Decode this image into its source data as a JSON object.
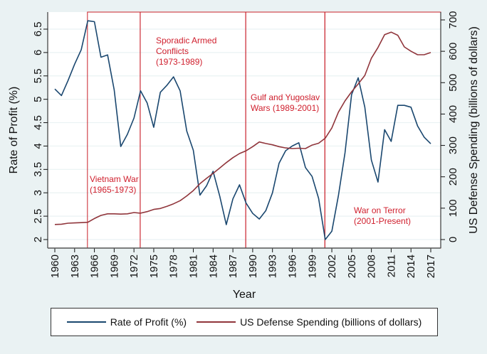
{
  "chart_data": {
    "type": "line",
    "title": "",
    "xlabel": "Year",
    "ylabel_left": "Rate of Profit (%)",
    "ylabel_right": "US Defense Spending (billions of dollars)",
    "ylim_left": [
      2,
      6.5
    ],
    "ylim_right": [
      0,
      700
    ],
    "xlim": [
      1960,
      2017
    ],
    "x_ticks": [
      1960,
      1963,
      1966,
      1969,
      1972,
      1975,
      1978,
      1981,
      1984,
      1987,
      1990,
      1993,
      1996,
      1999,
      2002,
      2005,
      2008,
      2011,
      2014,
      2017
    ],
    "y_ticks_left": [
      "2",
      "2.5",
      "3",
      "3.5",
      "4",
      "4.5",
      "5",
      "5.5",
      "6",
      "6.5"
    ],
    "y_ticks_right": [
      "0",
      "100",
      "200",
      "300",
      "400",
      "500",
      "600",
      "700"
    ],
    "grid": true,
    "legend_position": "bottom",
    "x": [
      1960,
      1961,
      1962,
      1963,
      1964,
      1965,
      1966,
      1967,
      1968,
      1969,
      1970,
      1971,
      1972,
      1973,
      1974,
      1975,
      1976,
      1977,
      1978,
      1979,
      1980,
      1981,
      1982,
      1983,
      1984,
      1985,
      1986,
      1987,
      1988,
      1989,
      1990,
      1991,
      1992,
      1993,
      1994,
      1995,
      1996,
      1997,
      1998,
      1999,
      2000,
      2001,
      2002,
      2003,
      2004,
      2005,
      2006,
      2007,
      2008,
      2009,
      2010,
      2011,
      2012,
      2013,
      2014,
      2015,
      2016,
      2017
    ],
    "series": [
      {
        "name": "Rate of Profit (%)",
        "axis": "left",
        "color": "#1a476f",
        "values": [
          5.22,
          5.08,
          5.4,
          5.75,
          6.06,
          6.68,
          6.66,
          5.9,
          5.95,
          5.2,
          3.99,
          4.25,
          4.6,
          5.18,
          4.92,
          4.4,
          5.15,
          5.3,
          5.48,
          5.18,
          4.32,
          3.91,
          2.95,
          3.15,
          3.46,
          2.93,
          2.32,
          2.87,
          3.17,
          2.78,
          2.56,
          2.44,
          2.62,
          3.0,
          3.63,
          3.9,
          4.0,
          4.07,
          3.54,
          3.35,
          2.88,
          2.0,
          2.18,
          2.94,
          3.86,
          5.1,
          5.46,
          4.83,
          3.7,
          3.23,
          4.35,
          4.1,
          4.87,
          4.87,
          4.83,
          4.43,
          4.19,
          4.05
        ]
      },
      {
        "name": "US Defense Spending (billions of dollars)",
        "axis": "right",
        "color": "#90353b",
        "values": [
          48,
          49,
          52,
          53,
          54,
          55,
          67,
          77,
          82,
          82,
          81,
          82,
          86,
          84,
          89,
          96,
          99,
          106,
          114,
          124,
          139,
          156,
          178,
          195,
          211,
          228,
          245,
          261,
          274,
          283,
          296,
          311,
          306,
          302,
          296,
          292,
          290,
          291,
          290,
          301,
          307,
          323,
          356,
          406,
          442,
          471,
          496,
          523,
          578,
          612,
          653,
          661,
          651,
          614,
          600,
          589,
          589,
          596
        ]
      }
    ],
    "periods": [
      {
        "label_lines": [
          "Vietnam War",
          "(1965-1973)"
        ],
        "start": 1965,
        "end": 1973
      },
      {
        "label_lines": [
          "Sporadic Armed",
          "Conflicts",
          "(1973-1989)"
        ],
        "start": 1973,
        "end": 1989
      },
      {
        "label_lines": [
          "Gulf and Yugoslav",
          "Wars (1989-2001)"
        ],
        "start": 1989,
        "end": 2001
      },
      {
        "label_lines": [
          "War on Terror",
          "(2001-Present)"
        ],
        "start": 2001,
        "end": 2018.5
      }
    ]
  },
  "legend": {
    "items": [
      {
        "label": "Rate of Profit (%)",
        "color": "#1a476f"
      },
      {
        "label": "US Defense Spending (billions of dollars)",
        "color": "#90353b"
      }
    ]
  },
  "colors": {
    "background": "#eaf2f3",
    "plot_bg": "#ffffff",
    "grid": "#eaf2f3",
    "period_frame": "#c8202a",
    "annotation": "#d0202e"
  }
}
